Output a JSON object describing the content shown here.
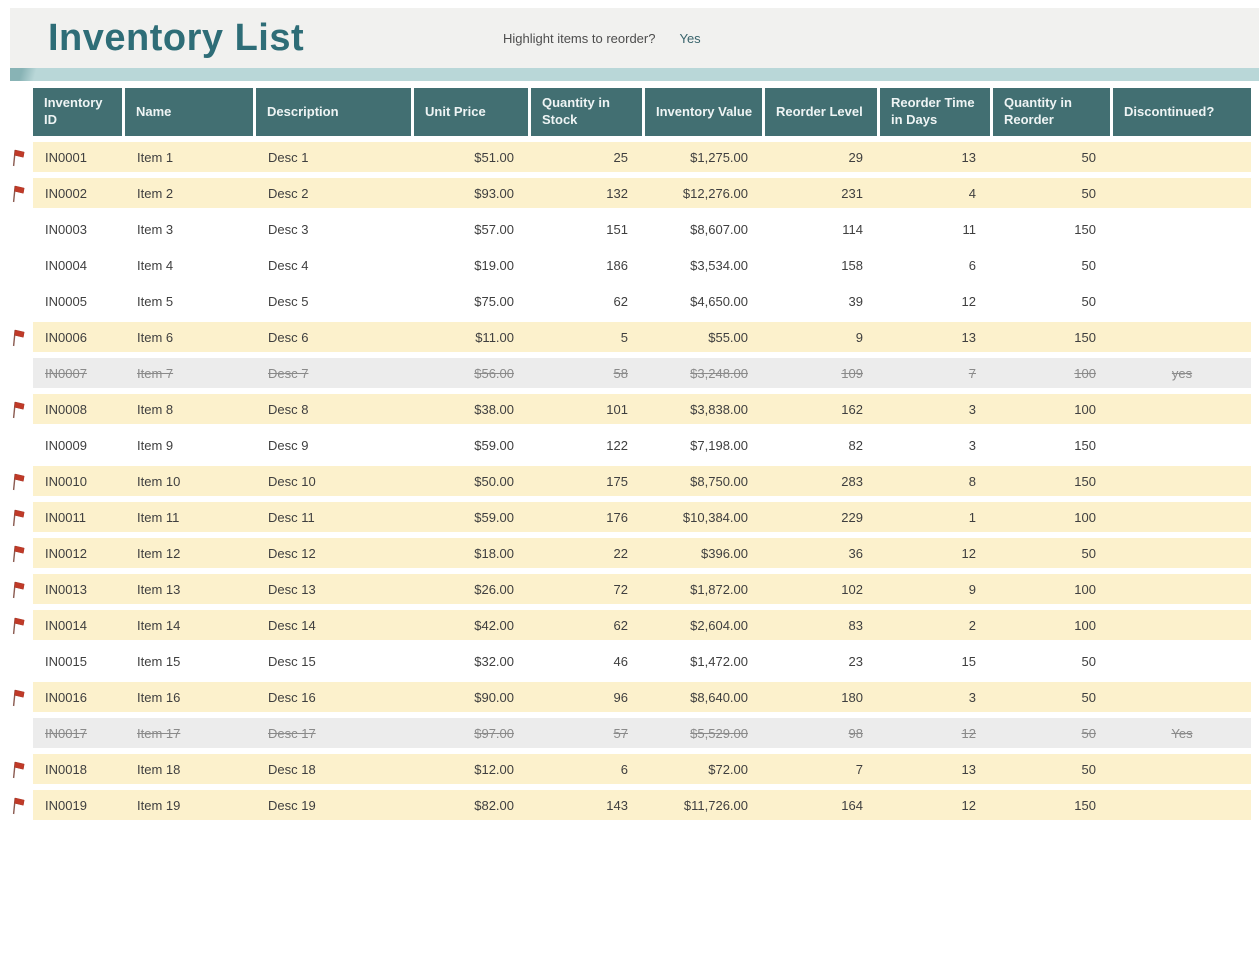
{
  "title": "Inventory List",
  "toolbar": {
    "highlight_label": "Highlight items to reorder?",
    "highlight_value": "Yes"
  },
  "colors": {
    "accent_teal": "#2e6d77",
    "header_bg": "#426f72",
    "ribbon": "#b9d7d8",
    "highlight_row": "#fcf1cc",
    "discontinued_row": "#ececec",
    "flag_red": "#c03a28"
  },
  "table": {
    "columns": [
      {
        "key": "id",
        "label": "Inventory ID",
        "align": "left"
      },
      {
        "key": "name",
        "label": "Name",
        "align": "left"
      },
      {
        "key": "description",
        "label": "Description",
        "align": "left"
      },
      {
        "key": "unit_price",
        "label": "Unit Price",
        "align": "right"
      },
      {
        "key": "quantity_in_stock",
        "label": "Quantity in Stock",
        "align": "right"
      },
      {
        "key": "inventory_value",
        "label": "Inventory Value",
        "align": "right"
      },
      {
        "key": "reorder_level",
        "label": "Reorder Level",
        "align": "right"
      },
      {
        "key": "reorder_time_in_days",
        "label": "Reorder Time in Days",
        "align": "right"
      },
      {
        "key": "quantity_in_reorder",
        "label": "Quantity in Reorder",
        "align": "right"
      },
      {
        "key": "discontinued",
        "label": "Discontinued?",
        "align": "center"
      }
    ],
    "rows": [
      {
        "id": "IN0001",
        "name": "Item 1",
        "description": "Desc 1",
        "unit_price": "$51.00",
        "quantity_in_stock": "25",
        "inventory_value": "$1,275.00",
        "reorder_level": "29",
        "reorder_time_in_days": "13",
        "quantity_in_reorder": "50",
        "discontinued": "",
        "flagged": true,
        "state": "highlight"
      },
      {
        "id": "IN0002",
        "name": "Item 2",
        "description": "Desc 2",
        "unit_price": "$93.00",
        "quantity_in_stock": "132",
        "inventory_value": "$12,276.00",
        "reorder_level": "231",
        "reorder_time_in_days": "4",
        "quantity_in_reorder": "50",
        "discontinued": "",
        "flagged": true,
        "state": "highlight"
      },
      {
        "id": "IN0003",
        "name": "Item 3",
        "description": "Desc 3",
        "unit_price": "$57.00",
        "quantity_in_stock": "151",
        "inventory_value": "$8,607.00",
        "reorder_level": "114",
        "reorder_time_in_days": "11",
        "quantity_in_reorder": "150",
        "discontinued": "",
        "flagged": false,
        "state": "normal"
      },
      {
        "id": "IN0004",
        "name": "Item 4",
        "description": "Desc 4",
        "unit_price": "$19.00",
        "quantity_in_stock": "186",
        "inventory_value": "$3,534.00",
        "reorder_level": "158",
        "reorder_time_in_days": "6",
        "quantity_in_reorder": "50",
        "discontinued": "",
        "flagged": false,
        "state": "normal"
      },
      {
        "id": "IN0005",
        "name": "Item 5",
        "description": "Desc 5",
        "unit_price": "$75.00",
        "quantity_in_stock": "62",
        "inventory_value": "$4,650.00",
        "reorder_level": "39",
        "reorder_time_in_days": "12",
        "quantity_in_reorder": "50",
        "discontinued": "",
        "flagged": false,
        "state": "normal"
      },
      {
        "id": "IN0006",
        "name": "Item 6",
        "description": "Desc 6",
        "unit_price": "$11.00",
        "quantity_in_stock": "5",
        "inventory_value": "$55.00",
        "reorder_level": "9",
        "reorder_time_in_days": "13",
        "quantity_in_reorder": "150",
        "discontinued": "",
        "flagged": true,
        "state": "highlight"
      },
      {
        "id": "IN0007",
        "name": "Item 7",
        "description": "Desc 7",
        "unit_price": "$56.00",
        "quantity_in_stock": "58",
        "inventory_value": "$3,248.00",
        "reorder_level": "109",
        "reorder_time_in_days": "7",
        "quantity_in_reorder": "100",
        "discontinued": "yes",
        "flagged": false,
        "state": "discontinued"
      },
      {
        "id": "IN0008",
        "name": "Item 8",
        "description": "Desc 8",
        "unit_price": "$38.00",
        "quantity_in_stock": "101",
        "inventory_value": "$3,838.00",
        "reorder_level": "162",
        "reorder_time_in_days": "3",
        "quantity_in_reorder": "100",
        "discontinued": "",
        "flagged": true,
        "state": "highlight"
      },
      {
        "id": "IN0009",
        "name": "Item 9",
        "description": "Desc 9",
        "unit_price": "$59.00",
        "quantity_in_stock": "122",
        "inventory_value": "$7,198.00",
        "reorder_level": "82",
        "reorder_time_in_days": "3",
        "quantity_in_reorder": "150",
        "discontinued": "",
        "flagged": false,
        "state": "normal"
      },
      {
        "id": "IN0010",
        "name": "Item 10",
        "description": "Desc 10",
        "unit_price": "$50.00",
        "quantity_in_stock": "175",
        "inventory_value": "$8,750.00",
        "reorder_level": "283",
        "reorder_time_in_days": "8",
        "quantity_in_reorder": "150",
        "discontinued": "",
        "flagged": true,
        "state": "highlight"
      },
      {
        "id": "IN0011",
        "name": "Item 11",
        "description": "Desc 11",
        "unit_price": "$59.00",
        "quantity_in_stock": "176",
        "inventory_value": "$10,384.00",
        "reorder_level": "229",
        "reorder_time_in_days": "1",
        "quantity_in_reorder": "100",
        "discontinued": "",
        "flagged": true,
        "state": "highlight"
      },
      {
        "id": "IN0012",
        "name": "Item 12",
        "description": "Desc 12",
        "unit_price": "$18.00",
        "quantity_in_stock": "22",
        "inventory_value": "$396.00",
        "reorder_level": "36",
        "reorder_time_in_days": "12",
        "quantity_in_reorder": "50",
        "discontinued": "",
        "flagged": true,
        "state": "highlight"
      },
      {
        "id": "IN0013",
        "name": "Item 13",
        "description": "Desc 13",
        "unit_price": "$26.00",
        "quantity_in_stock": "72",
        "inventory_value": "$1,872.00",
        "reorder_level": "102",
        "reorder_time_in_days": "9",
        "quantity_in_reorder": "100",
        "discontinued": "",
        "flagged": true,
        "state": "highlight"
      },
      {
        "id": "IN0014",
        "name": "Item 14",
        "description": "Desc 14",
        "unit_price": "$42.00",
        "quantity_in_stock": "62",
        "inventory_value": "$2,604.00",
        "reorder_level": "83",
        "reorder_time_in_days": "2",
        "quantity_in_reorder": "100",
        "discontinued": "",
        "flagged": true,
        "state": "highlight"
      },
      {
        "id": "IN0015",
        "name": "Item 15",
        "description": "Desc 15",
        "unit_price": "$32.00",
        "quantity_in_stock": "46",
        "inventory_value": "$1,472.00",
        "reorder_level": "23",
        "reorder_time_in_days": "15",
        "quantity_in_reorder": "50",
        "discontinued": "",
        "flagged": false,
        "state": "normal"
      },
      {
        "id": "IN0016",
        "name": "Item 16",
        "description": "Desc 16",
        "unit_price": "$90.00",
        "quantity_in_stock": "96",
        "inventory_value": "$8,640.00",
        "reorder_level": "180",
        "reorder_time_in_days": "3",
        "quantity_in_reorder": "50",
        "discontinued": "",
        "flagged": true,
        "state": "highlight"
      },
      {
        "id": "IN0017",
        "name": "Item 17",
        "description": "Desc 17",
        "unit_price": "$97.00",
        "quantity_in_stock": "57",
        "inventory_value": "$5,529.00",
        "reorder_level": "98",
        "reorder_time_in_days": "12",
        "quantity_in_reorder": "50",
        "discontinued": "Yes",
        "flagged": false,
        "state": "discontinued"
      },
      {
        "id": "IN0018",
        "name": "Item 18",
        "description": "Desc 18",
        "unit_price": "$12.00",
        "quantity_in_stock": "6",
        "inventory_value": "$72.00",
        "reorder_level": "7",
        "reorder_time_in_days": "13",
        "quantity_in_reorder": "50",
        "discontinued": "",
        "flagged": true,
        "state": "highlight"
      },
      {
        "id": "IN0019",
        "name": "Item 19",
        "description": "Desc 19",
        "unit_price": "$82.00",
        "quantity_in_stock": "143",
        "inventory_value": "$11,726.00",
        "reorder_level": "164",
        "reorder_time_in_days": "12",
        "quantity_in_reorder": "150",
        "discontinued": "",
        "flagged": true,
        "state": "highlight"
      }
    ]
  }
}
